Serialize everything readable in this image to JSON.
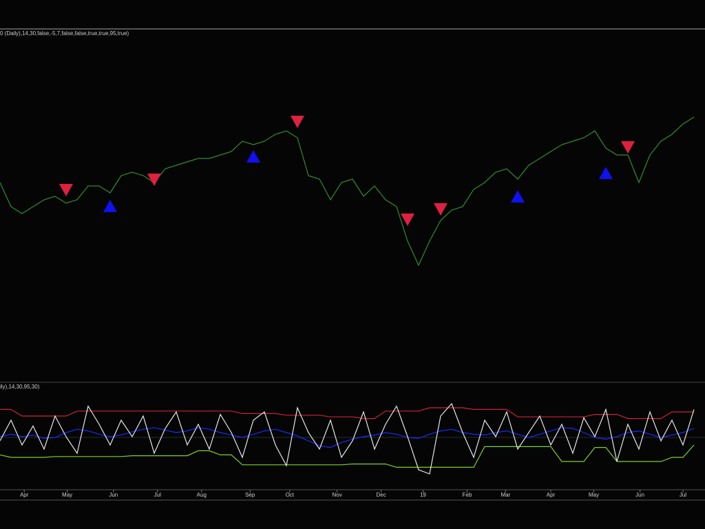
{
  "chart_data": [
    {
      "type": "line",
      "title": "0 (Daily),14,30,false,-5,7,false,false,true,true,95,true)",
      "xlim": [
        0,
        64
      ],
      "ylim": [
        0,
        100
      ],
      "series": [
        {
          "color": "#2f8f2f",
          "x": [
            0,
            1,
            2,
            3,
            4,
            5,
            6,
            7,
            8,
            9,
            10,
            11,
            12,
            13,
            14,
            15,
            16,
            17,
            18,
            19,
            20,
            21,
            22,
            23,
            24,
            25,
            26,
            27,
            28,
            29,
            30,
            31,
            32,
            33,
            34,
            35,
            36,
            37,
            38,
            39,
            40,
            41,
            42,
            43,
            44,
            45,
            46,
            47,
            48,
            49,
            50,
            51,
            52,
            53,
            54,
            55,
            56,
            57,
            58,
            59,
            60,
            61,
            62,
            63
          ],
          "values": [
            57,
            50,
            48,
            50,
            52,
            53,
            51,
            52,
            56,
            56,
            54,
            59,
            60,
            59,
            57,
            61,
            62,
            63,
            64,
            64,
            65,
            66,
            69,
            68,
            69,
            71,
            72,
            70,
            59,
            58,
            52,
            57,
            58,
            53,
            56,
            52,
            50,
            40,
            33,
            40,
            46,
            49,
            50,
            55,
            57,
            60,
            61,
            58,
            62,
            64,
            66,
            68,
            69,
            70,
            72,
            67,
            65,
            65,
            57,
            65,
            69,
            71,
            74,
            76
          ]
        },
        {
          "type": "scatter",
          "marker": "down",
          "color": "#e0203f",
          "x": [
            6,
            14,
            27,
            37,
            40,
            57
          ],
          "values": [
            54.6,
            57.6,
            74.4,
            46,
            49,
            67
          ]
        },
        {
          "type": "scatter",
          "marker": "up",
          "color": "#1010f0",
          "x": [
            10,
            23,
            47,
            55
          ],
          "values": [
            50.4,
            64.8,
            53.2,
            60
          ]
        }
      ]
    },
    {
      "type": "line",
      "title": "ily),14,30,95,30)",
      "xlim": [
        0,
        64
      ],
      "ylim": [
        0,
        100
      ],
      "xticks": [
        {
          "value": 2.2,
          "label": "Apr"
        },
        {
          "value": 6.1,
          "label": "May"
        },
        {
          "value": 10.3,
          "label": "Jun"
        },
        {
          "value": 14.3,
          "label": "Jul"
        },
        {
          "value": 18.3,
          "label": "Aug"
        },
        {
          "value": 22.7,
          "label": "Sep"
        },
        {
          "value": 26.3,
          "label": "Oct"
        },
        {
          "value": 30.6,
          "label": "Nov"
        },
        {
          "value": 34.6,
          "label": "Dec"
        },
        {
          "value": 38.4,
          "label": "19"
        },
        {
          "value": 42.4,
          "label": "Feb"
        },
        {
          "value": 45.9,
          "label": "Mar"
        },
        {
          "value": 50,
          "label": "Apr"
        },
        {
          "value": 53.9,
          "label": "May"
        },
        {
          "value": 58.1,
          "label": "Jun"
        },
        {
          "value": 62,
          "label": "Jul"
        }
      ],
      "series": [
        {
          "color": "#d0203a",
          "values": [
            88,
            88,
            80,
            80,
            80,
            80,
            80,
            86,
            86,
            86,
            86,
            86,
            86,
            86,
            86,
            86,
            86,
            86,
            86,
            86,
            86,
            86,
            83,
            83,
            83,
            83,
            81,
            81,
            81,
            81,
            79,
            79,
            79,
            77,
            77,
            86,
            86,
            86,
            86,
            90,
            90,
            90,
            90,
            88,
            88,
            88,
            88,
            79,
            79,
            79,
            79,
            79,
            79,
            79,
            82,
            82,
            82,
            77,
            77,
            77,
            77,
            85,
            85,
            85
          ]
        },
        {
          "color": "#7ed321",
          "values": [
            33,
            30,
            30,
            30,
            30,
            31,
            31,
            31,
            31,
            31,
            31,
            31,
            32,
            32,
            32,
            32,
            32,
            32,
            38,
            38,
            33,
            33,
            21,
            21,
            21,
            21,
            21,
            21,
            21,
            21,
            21,
            21,
            22,
            22,
            22,
            22,
            18,
            18,
            18,
            18,
            18,
            18,
            18,
            18,
            43,
            43,
            43,
            43,
            43,
            43,
            43,
            25,
            25,
            25,
            42,
            42,
            25,
            25,
            25,
            25,
            25,
            30,
            30,
            45
          ]
        },
        {
          "color": "#1a2cff",
          "values": [
            55,
            58,
            55,
            57,
            53,
            54,
            60,
            64,
            62,
            58,
            55,
            57,
            61,
            64,
            66,
            63,
            60,
            62,
            66,
            64,
            60,
            57,
            54,
            58,
            62,
            64,
            60,
            56,
            50,
            44,
            42,
            48,
            52,
            55,
            57,
            60,
            58,
            54,
            53,
            58,
            62,
            64,
            60,
            58,
            57,
            60,
            62,
            58,
            54,
            58,
            62,
            66,
            65,
            60,
            54,
            52,
            55,
            60,
            62,
            58,
            54,
            57,
            60,
            65
          ]
        },
        {
          "color": "#e8e8e8",
          "values": [
            50,
            75,
            45,
            68,
            40,
            80,
            55,
            35,
            92,
            70,
            45,
            75,
            55,
            80,
            35,
            65,
            85,
            45,
            70,
            40,
            82,
            60,
            30,
            75,
            85,
            45,
            20,
            90,
            60,
            40,
            75,
            30,
            50,
            85,
            40,
            70,
            92,
            55,
            15,
            10,
            80,
            95,
            60,
            30,
            75,
            55,
            85,
            40,
            60,
            80,
            45,
            70,
            35,
            78,
            55,
            88,
            25,
            70,
            40,
            85,
            50,
            75,
            45,
            88
          ]
        }
      ]
    }
  ]
}
